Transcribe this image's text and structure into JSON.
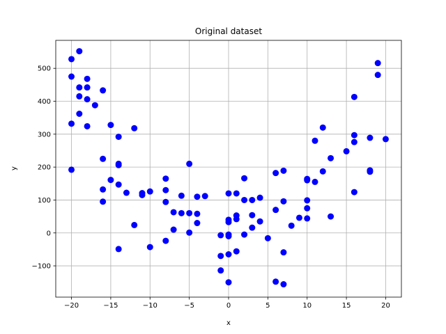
{
  "chart_data": {
    "type": "scatter",
    "title": "Original dataset",
    "xlabel": "x",
    "ylabel": "y",
    "xlim": [
      -22,
      22
    ],
    "ylim": [
      -195,
      585
    ],
    "xticks": [
      -20,
      -15,
      -10,
      -5,
      0,
      5,
      10,
      15,
      20
    ],
    "yticks": [
      -100,
      0,
      100,
      200,
      300,
      400,
      500
    ],
    "grid": true,
    "marker_color": "#0000ff",
    "points": [
      [
        -20,
        528
      ],
      [
        -20,
        475
      ],
      [
        -20,
        332
      ],
      [
        -20,
        192
      ],
      [
        -19,
        552
      ],
      [
        -19,
        442
      ],
      [
        -19,
        415
      ],
      [
        -19,
        362
      ],
      [
        -18,
        468
      ],
      [
        -18,
        442
      ],
      [
        -18,
        406
      ],
      [
        -18,
        324
      ],
      [
        -17,
        388
      ],
      [
        -16,
        433
      ],
      [
        -16,
        225
      ],
      [
        -16,
        132
      ],
      [
        -16,
        95
      ],
      [
        -15,
        328
      ],
      [
        -15,
        161
      ],
      [
        -14,
        292
      ],
      [
        -14,
        210
      ],
      [
        -14,
        206
      ],
      [
        -14,
        147
      ],
      [
        -14,
        -49
      ],
      [
        -13,
        122
      ],
      [
        -12,
        318
      ],
      [
        -12,
        24
      ],
      [
        -11,
        121
      ],
      [
        -11,
        115
      ],
      [
        -10,
        126
      ],
      [
        -10,
        -43
      ],
      [
        -8,
        165
      ],
      [
        -8,
        130
      ],
      [
        -8,
        94
      ],
      [
        -8,
        -24
      ],
      [
        -7,
        63
      ],
      [
        -7,
        10
      ],
      [
        -6,
        113
      ],
      [
        -6,
        60
      ],
      [
        -5,
        210
      ],
      [
        -5,
        60
      ],
      [
        -5,
        1
      ],
      [
        -4,
        110
      ],
      [
        -4,
        58
      ],
      [
        -4,
        30
      ],
      [
        -3,
        112
      ],
      [
        -1,
        -7
      ],
      [
        -1,
        -70
      ],
      [
        -1,
        -114
      ],
      [
        0,
        120
      ],
      [
        0,
        40
      ],
      [
        0,
        33
      ],
      [
        0,
        -5
      ],
      [
        0,
        -10
      ],
      [
        0,
        -65
      ],
      [
        0,
        -150
      ],
      [
        1,
        120
      ],
      [
        1,
        53
      ],
      [
        1,
        42
      ],
      [
        1,
        -56
      ],
      [
        2,
        166
      ],
      [
        2,
        100
      ],
      [
        2,
        -5
      ],
      [
        3,
        100
      ],
      [
        3,
        54
      ],
      [
        3,
        16
      ],
      [
        4,
        107
      ],
      [
        4,
        35
      ],
      [
        5,
        -16
      ],
      [
        6,
        182
      ],
      [
        6,
        70
      ],
      [
        6,
        -148
      ],
      [
        7,
        189
      ],
      [
        7,
        96
      ],
      [
        7,
        -59
      ],
      [
        7,
        -156
      ],
      [
        8,
        22
      ],
      [
        9,
        46
      ],
      [
        10,
        164
      ],
      [
        10,
        160
      ],
      [
        10,
        99
      ],
      [
        10,
        75
      ],
      [
        10,
        44
      ],
      [
        11,
        280
      ],
      [
        11,
        155
      ],
      [
        12,
        320
      ],
      [
        12,
        187
      ],
      [
        13,
        227
      ],
      [
        13,
        50
      ],
      [
        15,
        248
      ],
      [
        16,
        413
      ],
      [
        16,
        297
      ],
      [
        16,
        276
      ],
      [
        16,
        124
      ],
      [
        18,
        289
      ],
      [
        18,
        190
      ],
      [
        18,
        186
      ],
      [
        19,
        516
      ],
      [
        19,
        480
      ],
      [
        20,
        285
      ]
    ]
  }
}
